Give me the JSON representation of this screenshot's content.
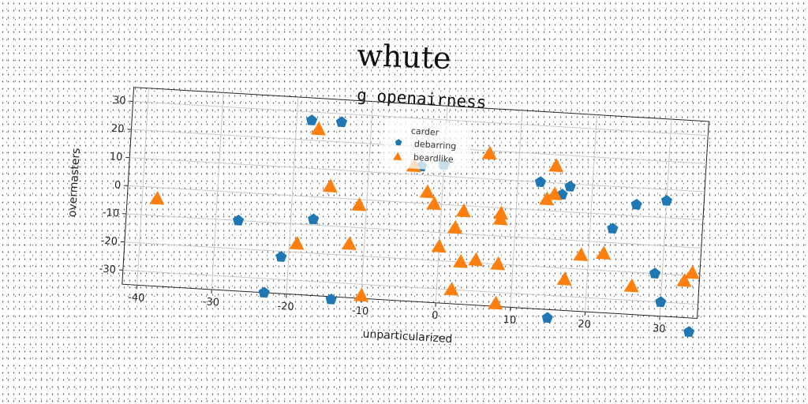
{
  "figure": {
    "title": "whute"
  },
  "chart_data": {
    "type": "scatter",
    "title": "g openairness",
    "xlabel": "unparticularized",
    "ylabel": "overmasters",
    "xlim": [
      -42,
      35
    ],
    "ylim": [
      -35,
      35
    ],
    "xticks": [
      -40,
      -30,
      -20,
      -10,
      0,
      10,
      20,
      30
    ],
    "yticks": [
      -30,
      -20,
      -10,
      0,
      10,
      20,
      30
    ],
    "grid": true,
    "legend": {
      "title": "carder",
      "position": "upper-center",
      "entries": [
        {
          "name": "debarring",
          "marker": "pentagon",
          "color": "#1f77b4"
        },
        {
          "name": "beardlike",
          "marker": "triangle",
          "color": "#ff7f0e"
        }
      ]
    },
    "series": [
      {
        "name": "debarring",
        "marker": "pentagon",
        "color": "#1f77b4",
        "points": [
          [
            -18,
            27
          ],
          [
            -14,
            27
          ],
          [
            -27,
            -10
          ],
          [
            -17,
            -8
          ],
          [
            -21,
            -22
          ],
          [
            -23,
            -35
          ],
          [
            -14,
            -36
          ],
          [
            -3,
            13
          ],
          [
            0,
            14
          ],
          [
            13,
            10
          ],
          [
            16,
            6
          ],
          [
            17,
            9
          ],
          [
            26,
            4
          ],
          [
            30,
            6
          ],
          [
            23,
            -5
          ],
          [
            29,
            -20
          ],
          [
            30,
            -30
          ],
          [
            34,
            -40
          ],
          [
            15,
            -38
          ]
        ]
      },
      {
        "name": "beardlike",
        "marker": "triangle",
        "color": "#ff7f0e",
        "points": [
          [
            -38,
            -4
          ],
          [
            -17,
            24
          ],
          [
            -15,
            4
          ],
          [
            -11,
            -2
          ],
          [
            -19,
            -17
          ],
          [
            -12,
            -16
          ],
          [
            -10,
            -34
          ],
          [
            -2,
            4
          ],
          [
            -1,
            0
          ],
          [
            -4,
            13
          ],
          [
            6,
            19
          ],
          [
            3,
            -2
          ],
          [
            8,
            -2
          ],
          [
            8,
            -4
          ],
          [
            2,
            -8
          ],
          [
            0,
            -15
          ],
          [
            3,
            -20
          ],
          [
            5,
            -19
          ],
          [
            8,
            -20
          ],
          [
            2,
            -30
          ],
          [
            8,
            -34
          ],
          [
            15,
            16
          ],
          [
            14,
            4
          ],
          [
            15,
            6
          ],
          [
            17,
            -24
          ],
          [
            19,
            -15
          ],
          [
            22,
            -14
          ],
          [
            26,
            -25
          ],
          [
            33,
            -22
          ],
          [
            34,
            -19
          ]
        ]
      }
    ]
  }
}
